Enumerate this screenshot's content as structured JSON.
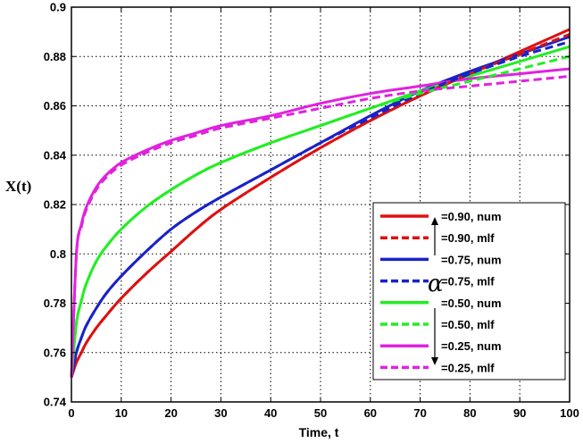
{
  "chart_data": {
    "type": "line",
    "title": "",
    "xlabel": "Time, t",
    "ylabel": "X(t)",
    "xlim": [
      0,
      100
    ],
    "ylim": [
      0.74,
      0.9
    ],
    "xticks": [
      0,
      10,
      20,
      30,
      40,
      50,
      60,
      70,
      80,
      90,
      100
    ],
    "yticks": [
      0.74,
      0.76,
      0.78,
      0.8,
      0.82,
      0.84,
      0.86,
      0.88,
      0.9
    ],
    "ytick_labels": [
      "0.74",
      "0.76",
      "0.78",
      "0.8",
      "0.82",
      "0.84",
      "0.86",
      "0.88",
      "0.9"
    ],
    "grid": true,
    "legend_position": "lower-right",
    "legend_symbol": "α",
    "x": [
      0,
      1,
      2,
      3,
      5,
      7,
      10,
      15,
      20,
      25,
      30,
      40,
      50,
      60,
      70,
      80,
      90,
      100
    ],
    "series": [
      {
        "name": "=0.90, num",
        "color": "#dd1111",
        "style": "solid",
        "values": [
          0.75,
          0.756,
          0.76,
          0.764,
          0.77,
          0.775,
          0.782,
          0.792,
          0.801,
          0.81,
          0.818,
          0.831,
          0.843,
          0.854,
          0.864,
          0.873,
          0.882,
          0.891
        ]
      },
      {
        "name": "=0.90, mlf",
        "color": "#dd1111",
        "style": "dashed",
        "values": [
          0.75,
          0.756,
          0.76,
          0.764,
          0.77,
          0.775,
          0.782,
          0.792,
          0.801,
          0.81,
          0.818,
          0.831,
          0.843,
          0.854,
          0.864,
          0.873,
          0.881,
          0.889
        ]
      },
      {
        "name": "=0.75, num",
        "color": "#1a22c8",
        "style": "solid",
        "values": [
          0.75,
          0.76,
          0.766,
          0.771,
          0.778,
          0.784,
          0.791,
          0.801,
          0.81,
          0.817,
          0.823,
          0.834,
          0.845,
          0.856,
          0.866,
          0.874,
          0.881,
          0.888
        ]
      },
      {
        "name": "=0.75, mlf",
        "color": "#1a22c8",
        "style": "dashed",
        "values": [
          0.75,
          0.76,
          0.766,
          0.771,
          0.778,
          0.784,
          0.791,
          0.801,
          0.81,
          0.817,
          0.823,
          0.834,
          0.845,
          0.855,
          0.865,
          0.873,
          0.88,
          0.886
        ]
      },
      {
        "name": "=0.50, num",
        "color": "#22ee22",
        "style": "solid",
        "values": [
          0.75,
          0.772,
          0.781,
          0.788,
          0.797,
          0.803,
          0.81,
          0.819,
          0.826,
          0.832,
          0.837,
          0.845,
          0.852,
          0.859,
          0.866,
          0.872,
          0.878,
          0.884
        ]
      },
      {
        "name": "=0.50, mlf",
        "color": "#22ee22",
        "style": "dashed",
        "values": [
          0.75,
          0.772,
          0.781,
          0.788,
          0.797,
          0.803,
          0.81,
          0.819,
          0.826,
          0.832,
          0.837,
          0.845,
          0.852,
          0.859,
          0.865,
          0.87,
          0.875,
          0.88
        ]
      },
      {
        "name": "=0.25, num",
        "color": "#e022e0",
        "style": "solid",
        "values": [
          0.75,
          0.8,
          0.812,
          0.819,
          0.827,
          0.832,
          0.837,
          0.842,
          0.846,
          0.849,
          0.852,
          0.856,
          0.861,
          0.865,
          0.868,
          0.871,
          0.873,
          0.875
        ]
      },
      {
        "name": "=0.25, mlf",
        "color": "#e022e0",
        "style": "dashed",
        "values": [
          0.75,
          0.8,
          0.811,
          0.818,
          0.826,
          0.831,
          0.836,
          0.841,
          0.845,
          0.848,
          0.851,
          0.855,
          0.859,
          0.863,
          0.866,
          0.868,
          0.87,
          0.872
        ]
      }
    ]
  }
}
